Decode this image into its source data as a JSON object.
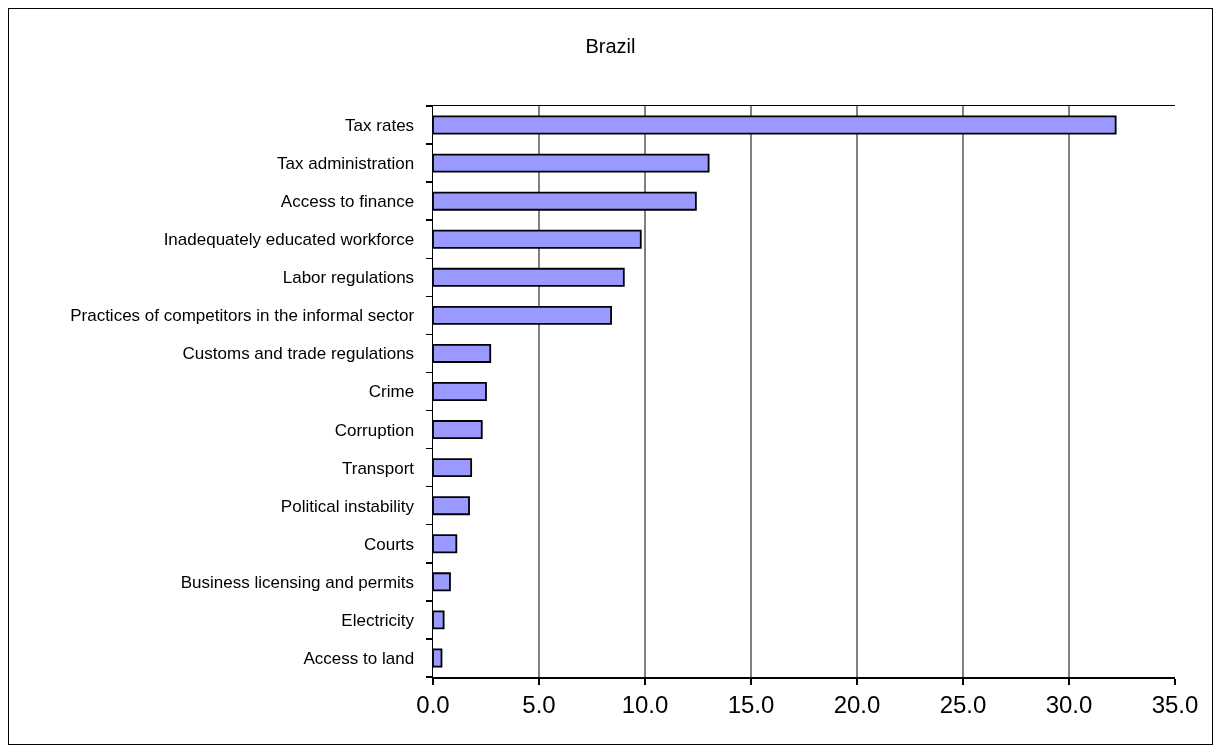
{
  "chart_data": {
    "type": "bar",
    "title": "Brazil",
    "orientation": "horizontal",
    "categories": [
      "Tax rates",
      "Tax administration",
      "Access to finance",
      "Inadequately educated workforce",
      "Labor regulations",
      "Practices of competitors in the informal sector",
      "Customs and trade regulations",
      "Crime",
      "Corruption",
      "Transport",
      "Political instability",
      "Courts",
      "Business licensing and permits",
      "Electricity",
      "Access to land"
    ],
    "values": [
      32.2,
      13.0,
      12.4,
      9.8,
      9.0,
      8.4,
      2.7,
      2.5,
      2.3,
      1.8,
      1.7,
      1.1,
      0.8,
      0.5,
      0.4
    ],
    "color": "#9999ff",
    "xlim": [
      0,
      35
    ],
    "xticks": [
      {
        "value": 0,
        "label": "0.0"
      },
      {
        "value": 5,
        "label": "5.0"
      },
      {
        "value": 10,
        "label": "10.0"
      },
      {
        "value": 15,
        "label": "15.0"
      },
      {
        "value": 20,
        "label": "20.0"
      },
      {
        "value": 25,
        "label": "25.0"
      },
      {
        "value": 30,
        "label": "30.0"
      },
      {
        "value": 35,
        "label": "35.0"
      }
    ],
    "grid": "x"
  }
}
